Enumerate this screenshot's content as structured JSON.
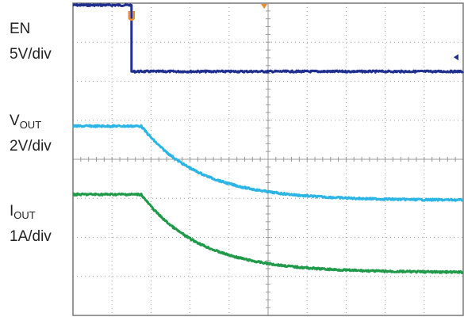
{
  "labels": {
    "en_name": "EN",
    "en_scale": "5V/div",
    "vout_main": "V",
    "vout_sub": "OUT",
    "vout_scale": "2V/div",
    "iout_main": "I",
    "iout_sub": "OUT",
    "iout_scale": "1A/div"
  },
  "chart_data": {
    "type": "line",
    "grid": true,
    "x_divisions": 10,
    "y_divisions": 8,
    "colors": {
      "EN": "#1f2f8f",
      "VOUT": "#2bb5e6",
      "IOUT": "#1e9a48",
      "marker": "#f08a24",
      "grid": "#9a9a9a"
    },
    "series": [
      {
        "id": "EN",
        "level_high_div": 7.95,
        "level_low_div": 6.25,
        "step_at_div": 6.6,
        "step_time_div": 1.5,
        "decay": "step"
      },
      {
        "id": "VOUT",
        "initial_div": 4.85,
        "final_div": 2.95,
        "start_time_div": 1.75,
        "decay": "exponential",
        "tau_div": 1.5
      },
      {
        "id": "IOUT",
        "initial_div": 3.1,
        "final_div": 1.1,
        "start_time_div": 1.75,
        "decay": "exponential",
        "tau_div": 1.5
      }
    ],
    "trigger_marker_time_div": 1.5,
    "time_marker_div": 4.9,
    "level_marker": "EN"
  }
}
